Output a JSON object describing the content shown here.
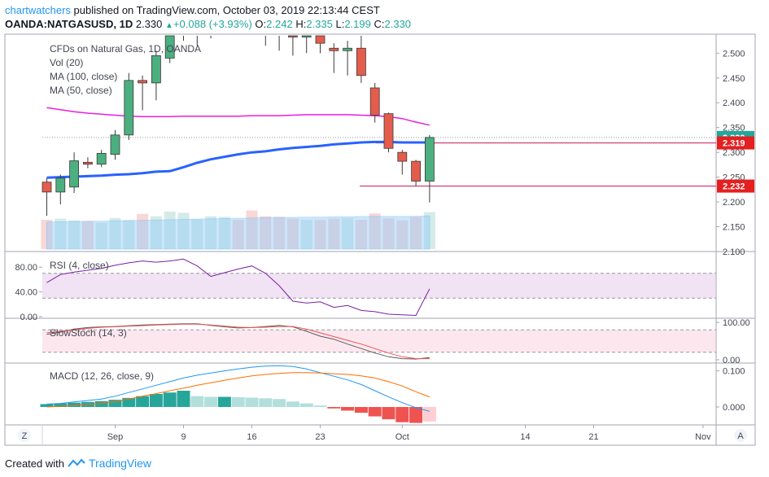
{
  "header": {
    "user": "chartwatchers",
    "published_text": "published on TradingView.com, October 03, 2019 22:13:44 CEST",
    "symbol": "OANDA:NATGASUSD, 1D",
    "last": "2.330",
    "change": "+0.088 (+3.93%)",
    "open_label": "O:",
    "open": "2.242",
    "high_label": "H:",
    "high": "2.335",
    "low_label": "L:",
    "low": "2.199",
    "close_label": "C:",
    "close": "2.330"
  },
  "footer": {
    "created_with": "Created with",
    "brand": "TradingView"
  },
  "corner_left": "Z",
  "corner_right": "A",
  "colors": {
    "up": "#26a69a",
    "down": "#ef5350",
    "ma100": "#e91ee0",
    "ma50": "#2962ff",
    "rsi": "#7b1fa2",
    "macd": "#2196f3",
    "signal": "#ff6d00",
    "hline": "#c2185b"
  },
  "chart_data": [
    {
      "type": "candlestick",
      "title": "CFDs on Natural Gas, 1D, OANDA",
      "legend": [
        "Vol (20)",
        "MA (100, close)",
        "MA (50, close)"
      ],
      "y_ticks": [
        "2.500",
        "2.450",
        "2.400",
        "2.350",
        "2.300",
        "2.250",
        "2.200",
        "2.150",
        "2.100"
      ],
      "ylim": [
        2.1,
        2.535
      ],
      "price_tags": [
        {
          "label": "2.330",
          "value": 2.33,
          "color": "#26a69a"
        },
        {
          "label": "2.319",
          "value": 2.319,
          "color": "#e41f1f"
        },
        {
          "label": "2.232",
          "value": 2.232,
          "color": "#e41f1f"
        }
      ],
      "horizontal_lines": [
        2.319,
        2.232
      ],
      "candles": [
        {
          "o": 2.24,
          "h": 2.248,
          "l": 2.172,
          "c": 2.22
        },
        {
          "o": 2.22,
          "h": 2.255,
          "l": 2.195,
          "c": 2.248
        },
        {
          "o": 2.23,
          "h": 2.3,
          "l": 2.218,
          "c": 2.283
        },
        {
          "o": 2.28,
          "h": 2.29,
          "l": 2.268,
          "c": 2.276
        },
        {
          "o": 2.276,
          "h": 2.305,
          "l": 2.27,
          "c": 2.298
        },
        {
          "o": 2.296,
          "h": 2.345,
          "l": 2.285,
          "c": 2.335
        },
        {
          "o": 2.335,
          "h": 2.46,
          "l": 2.325,
          "c": 2.445
        },
        {
          "o": 2.445,
          "h": 2.455,
          "l": 2.385,
          "c": 2.44
        },
        {
          "o": 2.44,
          "h": 2.505,
          "l": 2.405,
          "c": 2.495
        },
        {
          "o": 2.49,
          "h": 2.545,
          "l": 2.48,
          "c": 2.545
        },
        {
          "o": 2.545,
          "h": 2.56,
          "l": 2.525,
          "c": 2.548
        },
        {
          "o": 2.548,
          "h": 2.57,
          "l": 2.515,
          "c": 2.552
        },
        {
          "o": 2.552,
          "h": 2.58,
          "l": 2.53,
          "c": 2.56
        },
        {
          "o": 2.56,
          "h": 2.585,
          "l": 2.54,
          "c": 2.57
        },
        {
          "o": 2.57,
          "h": 2.59,
          "l": 2.54,
          "c": 2.565
        },
        {
          "o": 2.565,
          "h": 2.58,
          "l": 2.535,
          "c": 2.555
        },
        {
          "o": 2.555,
          "h": 2.57,
          "l": 2.515,
          "c": 2.545
        },
        {
          "o": 2.545,
          "h": 2.56,
          "l": 2.505,
          "c": 2.538
        },
        {
          "o": 2.538,
          "h": 2.565,
          "l": 2.495,
          "c": 2.533
        },
        {
          "o": 2.533,
          "h": 2.545,
          "l": 2.5,
          "c": 2.538
        },
        {
          "o": 2.538,
          "h": 2.548,
          "l": 2.5,
          "c": 2.52
        },
        {
          "o": 2.51,
          "h": 2.52,
          "l": 2.46,
          "c": 2.505
        },
        {
          "o": 2.505,
          "h": 2.525,
          "l": 2.455,
          "c": 2.51
        },
        {
          "o": 2.51,
          "h": 2.54,
          "l": 2.44,
          "c": 2.455
        },
        {
          "o": 2.43,
          "h": 2.44,
          "l": 2.36,
          "c": 2.375
        },
        {
          "o": 2.378,
          "h": 2.38,
          "l": 2.3,
          "c": 2.308
        },
        {
          "o": 2.3,
          "h": 2.305,
          "l": 2.255,
          "c": 2.282
        },
        {
          "o": 2.282,
          "h": 2.285,
          "l": 2.232,
          "c": 2.242
        },
        {
          "o": 2.242,
          "h": 2.335,
          "l": 2.199,
          "c": 2.33
        }
      ],
      "ma100": [
        2.39,
        2.386,
        2.382,
        2.379,
        2.377,
        2.375,
        2.373,
        2.372,
        2.372,
        2.372,
        2.373,
        2.373,
        2.373,
        2.373,
        2.373,
        2.374,
        2.374,
        2.374,
        2.375,
        2.376,
        2.376,
        2.376,
        2.376,
        2.375,
        2.374,
        2.372,
        2.368,
        2.361,
        2.355
      ],
      "ma50": [
        2.249,
        2.25,
        2.251,
        2.252,
        2.253,
        2.255,
        2.256,
        2.258,
        2.261,
        2.262,
        2.27,
        2.279,
        2.286,
        2.291,
        2.296,
        2.3,
        2.302,
        2.306,
        2.309,
        2.311,
        2.313,
        2.316,
        2.318,
        2.32,
        2.321,
        2.321,
        2.32,
        2.32,
        2.32
      ],
      "volume": [
        1.0,
        1.04,
        0.98,
        0.95,
        0.9,
        1.06,
        0.99,
        1.2,
        1.12,
        1.28,
        1.24,
        1.02,
        1.12,
        1.1,
        1.0,
        1.32,
        1.12,
        1.1,
        1.04,
        1.0,
        1.0,
        1.04,
        1.06,
        1.0,
        1.22,
        1.05,
        0.98,
        1.1,
        1.26
      ],
      "volume_ma": [
        0.92,
        0.93,
        0.94,
        0.95,
        0.95,
        0.96,
        0.97,
        0.98,
        0.99,
        1.0,
        1.01,
        1.02,
        1.03,
        1.04,
        1.05,
        1.06,
        1.07,
        1.08,
        1.08,
        1.09,
        1.09,
        1.1,
        1.1,
        1.11,
        1.11,
        1.12,
        1.12,
        1.12,
        1.13
      ],
      "x_ticks": [
        {
          "label": "Sep",
          "index": 5
        },
        {
          "label": "9",
          "index": 10
        },
        {
          "label": "16",
          "index": 15
        },
        {
          "label": "23",
          "index": 20
        },
        {
          "label": "Oct",
          "index": 26
        },
        {
          "label": "14",
          "index": 35
        },
        {
          "label": "21",
          "index": 40
        },
        {
          "label": "Nov",
          "index": 48
        }
      ]
    },
    {
      "type": "line",
      "title": "RSI (4, close)",
      "y_ticks": [
        "80.00",
        "40.00",
        "0.00"
      ],
      "band": [
        30,
        70
      ],
      "values": [
        55,
        68,
        72,
        75,
        78,
        83,
        87,
        90,
        88,
        90,
        93,
        82,
        65,
        71,
        77,
        82,
        70,
        50,
        25,
        22,
        24,
        15,
        18,
        10,
        8,
        4,
        3,
        2,
        45
      ]
    },
    {
      "type": "line",
      "title": "SlowStoch (14, 3)",
      "y_ticks": [
        "100.00",
        "0.00"
      ],
      "band": [
        20,
        80
      ],
      "series": [
        {
          "values": [
            68,
            74,
            82,
            86,
            88,
            89,
            91,
            93,
            94,
            95,
            96,
            96,
            92,
            88,
            85,
            86,
            89,
            92,
            88,
            76,
            63,
            55,
            42,
            30,
            18,
            8,
            3,
            2,
            6
          ]
        },
        {
          "values": [
            72,
            76,
            80,
            84,
            87,
            88,
            90,
            91,
            93,
            94,
            95,
            95,
            93,
            90,
            87,
            86,
            87,
            89,
            89,
            82,
            72,
            62,
            52,
            42,
            30,
            18,
            8,
            3,
            3
          ]
        }
      ]
    },
    {
      "type": "line",
      "title": "MACD (12, 26, close, 9)",
      "y_ticks": [
        "0.100",
        "0.000"
      ],
      "ylim": [
        -0.045,
        0.117
      ],
      "macd": [
        0.008,
        0.01,
        0.014,
        0.018,
        0.022,
        0.03,
        0.04,
        0.05,
        0.06,
        0.07,
        0.08,
        0.088,
        0.094,
        0.1,
        0.105,
        0.11,
        0.113,
        0.114,
        0.112,
        0.105,
        0.095,
        0.085,
        0.075,
        0.062,
        0.045,
        0.028,
        0.012,
        -0.002,
        -0.012
      ],
      "signal": [
        0.0,
        0.002,
        0.004,
        0.007,
        0.01,
        0.015,
        0.022,
        0.03,
        0.037,
        0.045,
        0.052,
        0.06,
        0.067,
        0.074,
        0.08,
        0.086,
        0.09,
        0.093,
        0.095,
        0.095,
        0.094,
        0.092,
        0.09,
        0.086,
        0.08,
        0.07,
        0.058,
        0.042,
        0.028
      ],
      "histogram": [
        0.008,
        0.01,
        0.012,
        0.014,
        0.016,
        0.02,
        0.025,
        0.03,
        0.036,
        0.04,
        0.045,
        0.03,
        0.028,
        0.028,
        0.027,
        0.026,
        0.024,
        0.022,
        0.015,
        0.01,
        0.004,
        -0.004,
        -0.01,
        -0.016,
        -0.026,
        -0.034,
        -0.042,
        -0.044,
        -0.04
      ]
    }
  ]
}
